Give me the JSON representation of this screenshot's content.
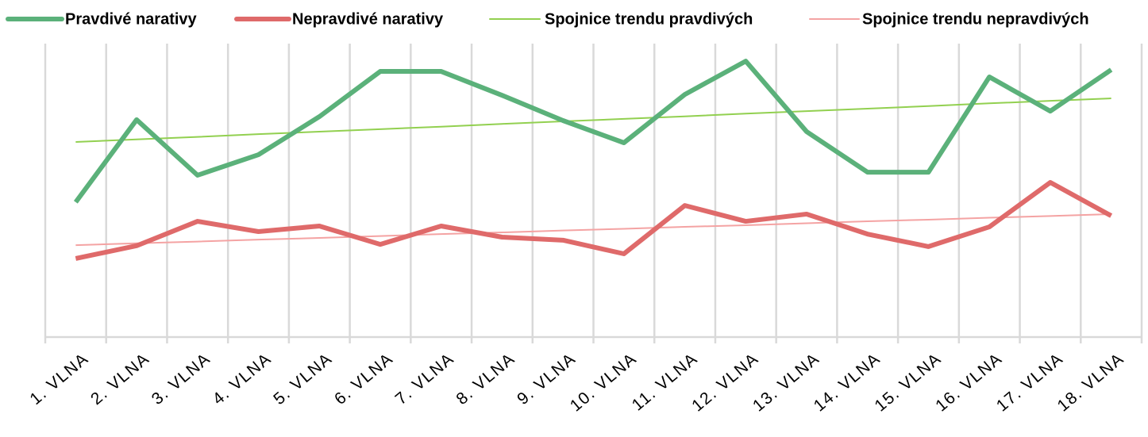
{
  "chart_data": {
    "type": "line",
    "categories": [
      "1. VLNA",
      "2. VLNA",
      "3. VLNA",
      "4. VLNA",
      "5. VLNA",
      "6. VLNA",
      "7. VLNA",
      "8. VLNA",
      "9. VLNA",
      "10. VLNA",
      "11. VLNA",
      "12. VLNA",
      "13. VLNA",
      "14. VLNA",
      "15. VLNA",
      "16. VLNA",
      "17. VLNA",
      "18. VLNA"
    ],
    "ylim": [
      0,
      100
    ],
    "series": [
      {
        "name": "Pravdivé narativy",
        "color": "#5bb17a",
        "width": 6,
        "values": [
          48.6,
          78.3,
          58.3,
          65.7,
          79.4,
          95.7,
          95.7,
          87.1,
          78.0,
          70.0,
          87.4,
          99.4,
          74.0,
          59.4,
          59.4,
          93.7,
          81.4,
          96.3
        ]
      },
      {
        "name": "Nepravdivé narativy",
        "color": "#df6a6a",
        "width": 6,
        "values": [
          28.3,
          32.9,
          41.7,
          38.0,
          40.0,
          33.4,
          40.0,
          36.0,
          34.9,
          30.0,
          47.4,
          41.7,
          44.3,
          37.1,
          32.6,
          39.7,
          55.7,
          43.7
        ]
      },
      {
        "name": "Spojnice trendu pravdivých",
        "color": "#92d050",
        "width": 2,
        "values": [
          70.3,
          71.2,
          72.1,
          73.1,
          74.0,
          74.9,
          75.8,
          76.8,
          77.7,
          78.6,
          79.5,
          80.5,
          81.4,
          82.3,
          83.2,
          84.2,
          85.1,
          86.0
        ]
      },
      {
        "name": "Spojnice trendu nepravdivých",
        "color": "#f4a3a3",
        "width": 2,
        "values": [
          33.1,
          33.8,
          34.4,
          35.1,
          35.7,
          36.4,
          37.1,
          37.7,
          38.4,
          39.0,
          39.7,
          40.3,
          41.0,
          41.7,
          42.3,
          43.0,
          43.6,
          44.3
        ]
      }
    ]
  }
}
